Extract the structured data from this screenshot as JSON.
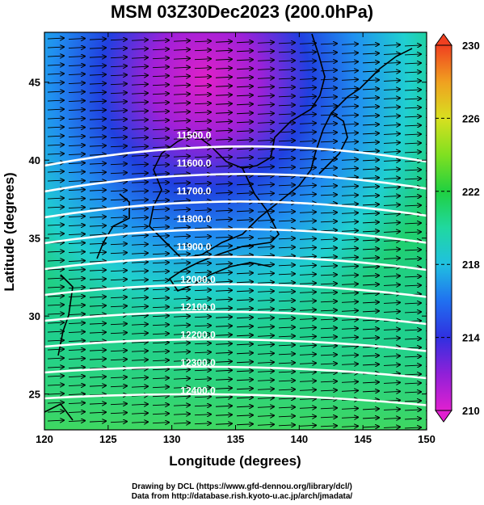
{
  "title": "MSM 03Z30Dec2023 (200.0hPa)",
  "axes": {
    "xlabel": "Longitude (degrees)",
    "ylabel": "Latitude  (degrees)",
    "x_ticks": [
      "120",
      "125",
      "130",
      "135",
      "140",
      "145",
      "150"
    ],
    "y_ticks": [
      "25",
      "30",
      "35",
      "40",
      "45"
    ]
  },
  "colorbar": {
    "ticks": [
      "230",
      "226",
      "222",
      "218",
      "214",
      "210"
    ],
    "min": 210,
    "max": 230,
    "colors": [
      "#e020d0",
      "#9020d8",
      "#3030e0",
      "#2070f0",
      "#20c0e0",
      "#20d8a0",
      "#20d040",
      "#80e020",
      "#d8e020",
      "#f0a020",
      "#f04020"
    ]
  },
  "contours": [
    {
      "label": "11500.0"
    },
    {
      "label": "11600.0"
    },
    {
      "label": "11700.0"
    },
    {
      "label": "11800.0"
    },
    {
      "label": "11900.0"
    },
    {
      "label": "12000.0"
    },
    {
      "label": "12100.0"
    },
    {
      "label": "12200.0"
    },
    {
      "label": "12300.0"
    },
    {
      "label": "12400.0"
    }
  ],
  "footer": {
    "line1": "Drawing by DCL (https://www.gfd-dennou.org/library/dcl/)",
    "line2": "Data from http://database.rish.kyoto-u.ac.jp/arch/jmadata/"
  }
}
